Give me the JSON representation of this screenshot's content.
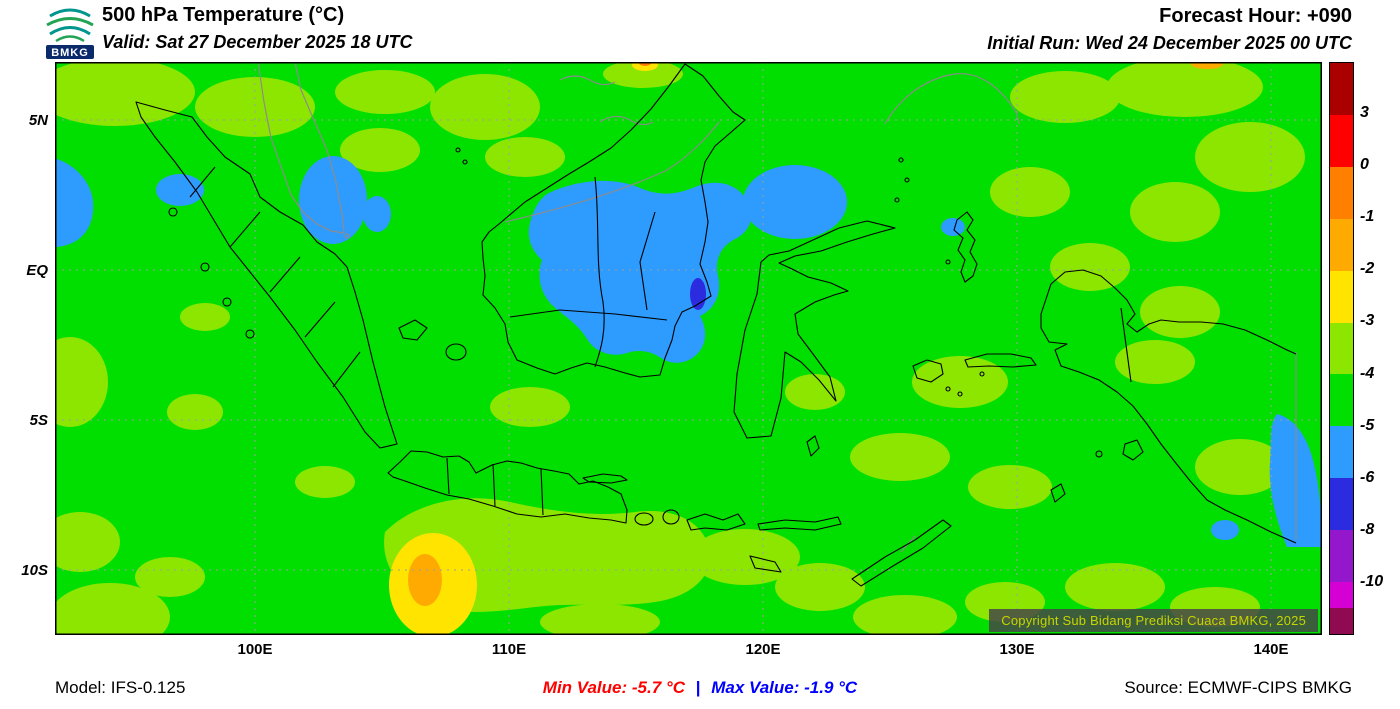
{
  "header": {
    "logo_text": "BMKG",
    "title": "500 hPa Temperature (°C)",
    "valid_line": "Valid: Sat 27 December 2025 18 UTC",
    "forecast_hour": "Forecast Hour: +090",
    "initial_run": "Initial Run: Wed 24 December 2025 00 UTC"
  },
  "axes": {
    "lat": [
      "5N",
      "EQ",
      "5S",
      "10S"
    ],
    "lon": [
      "100E",
      "110E",
      "120E",
      "130E",
      "140E"
    ]
  },
  "colorbar": {
    "tick_labels": [
      "3",
      "0",
      "-1",
      "-2",
      "-3",
      "-4",
      "-5",
      "-6",
      "-8",
      "-10"
    ],
    "segments": [
      {
        "range": "above 3",
        "palette": "cb-darkred"
      },
      {
        "range": "0 to 3",
        "palette": "cb-red"
      },
      {
        "range": "-1 to 0",
        "palette": "cb-orange"
      },
      {
        "range": "-2 to -1",
        "palette": "cb-amber"
      },
      {
        "range": "-3 to -2",
        "palette": "cb-yellow"
      },
      {
        "range": "-4 to -3",
        "palette": "cb-yellowgreen"
      },
      {
        "range": "-5 to -4",
        "palette": "cb-green"
      },
      {
        "range": "-6 to -5",
        "palette": "cb-lightblue"
      },
      {
        "range": "-8 to -6",
        "palette": "cb-blue"
      },
      {
        "range": "-10 to -8",
        "palette": "cb-purple"
      },
      {
        "range": "-12 to -10",
        "palette": "cb-magenta"
      },
      {
        "range": "below -12",
        "palette": "cb-maroon"
      }
    ]
  },
  "map_overlay": {
    "copyright": "Copyright Sub Bidang Prediksi Cuaca BMKG, 2025"
  },
  "footer": {
    "model": "Model: IFS-0.125",
    "min_value": "Min Value: -5.7 °C",
    "separator": "|",
    "max_value": "Max Value: -1.9 °C",
    "source": "Source: ECMWF-CIPS BMKG"
  },
  "palette": {
    "cb-darkred": "#AA0000",
    "cb-red": "#FF0000",
    "cb-orange": "#FF7F00",
    "cb-amber": "#FFAA00",
    "cb-yellow": "#FFE400",
    "cb-yellowgreen": "#8CE600",
    "cb-green": "#00DF00",
    "cb-lightblue": "#2E9BFF",
    "cb-blue": "#2B2BE0",
    "cb-purple": "#9417CC",
    "cb-magenta": "#D400D4",
    "cb-maroon": "#8F0A50",
    "grid": "#9AA0A0",
    "coast": "#000000",
    "border-foreign": "#8C8C8C",
    "copyright-bg": "rgba(70,70,70,0.85)",
    "copyright-fg": "#C7D400",
    "min-color": "#FF0000",
    "max-color": "#0000FF"
  },
  "chart_data": {
    "type": "heatmap",
    "title": "500 hPa Temperature (°C)",
    "valid_time": "Sat 27 December 2025 18 UTC",
    "initial_run": "Wed 24 December 2025 00 UTC",
    "forecast_hour": "+090",
    "model": "IFS-0.125",
    "source": "ECMWF-CIPS BMKG",
    "lat_ticks": [
      "5N",
      "EQ",
      "5S",
      "10S"
    ],
    "lon_ticks": [
      "100E",
      "110E",
      "120E",
      "130E",
      "140E"
    ],
    "colorbar_levels_c": [
      3,
      0,
      -1,
      -2,
      -3,
      -4,
      -5,
      -6,
      -8,
      -10
    ],
    "min_value_c": -5.7,
    "max_value_c": -1.9,
    "legend_position": "right",
    "grid": "dotted lat/lon graticule",
    "field_summary": "500 hPa temperature over Indonesia is mostly -5 to -4 °C (green) with scattered -4 to -3 °C patches (yellow-green); colder pools below -5 °C (blue) over central Borneo/Karimata, parts of Sumatra, the Banda Sea approaches and far-eastern Papua; a localized warm maximum near -1.9 °C (yellow/orange) southwest of Java around 107E 10S."
  }
}
